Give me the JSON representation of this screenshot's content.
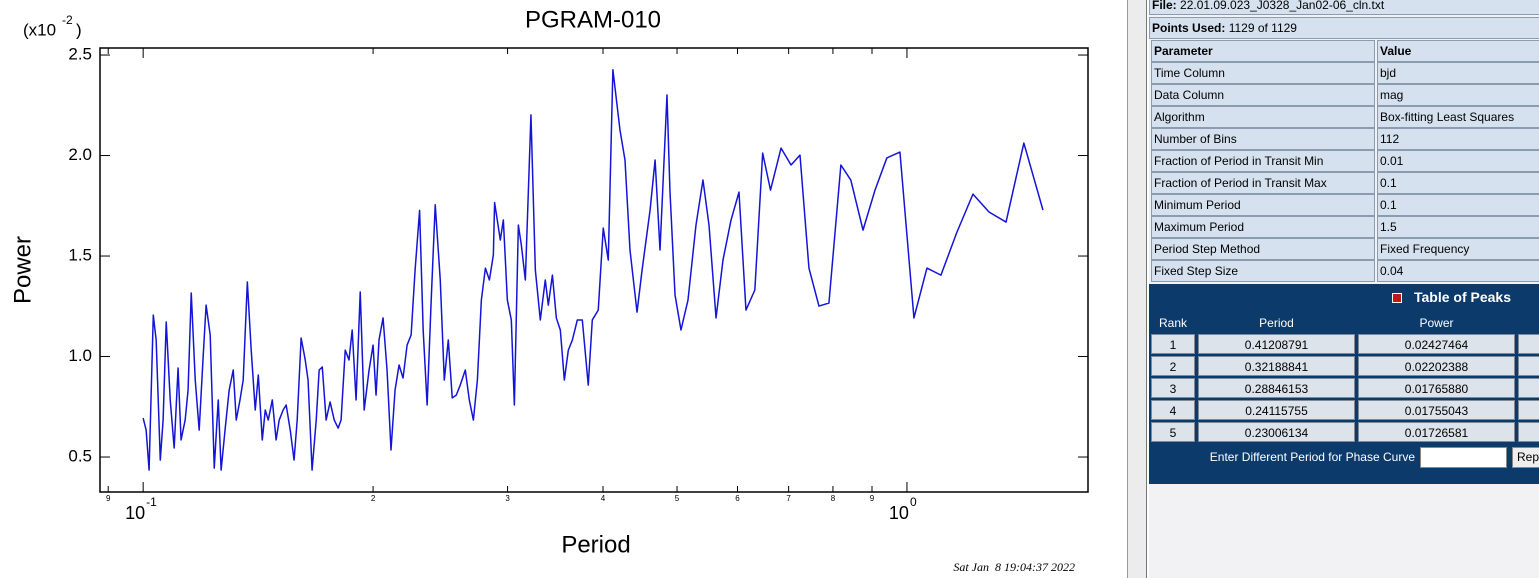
{
  "chart_data": {
    "type": "line",
    "title": "PGRAM-010",
    "x_label": "Period",
    "y_label": "Power",
    "y_scale": {
      "base": "(x10",
      "exponent": "-2",
      "close": ")"
    },
    "xscale": "log",
    "xlim": [
      0.0878,
      1.726
    ],
    "ylim": [
      0.326,
      2.535
    ],
    "xticks": [
      {
        "value": 0.09,
        "label": "9"
      },
      {
        "value": 0.1,
        "label": "10",
        "exponent": "-1"
      },
      {
        "value": 0.2,
        "label": "2"
      },
      {
        "value": 0.3,
        "label": "3"
      },
      {
        "value": 0.4,
        "label": "4"
      },
      {
        "value": 0.5,
        "label": "5"
      },
      {
        "value": 0.6,
        "label": "6"
      },
      {
        "value": 0.7,
        "label": "7"
      },
      {
        "value": 0.8,
        "label": "8"
      },
      {
        "value": 0.9,
        "label": "9"
      },
      {
        "value": 1,
        "label": "10",
        "exponent": "0"
      }
    ],
    "yticks": [
      0.5,
      {
        "value": 1,
        "label": "1.0"
      },
      1.5,
      {
        "value": 2,
        "label": "2.0"
      },
      2.5
    ],
    "x": [
      0.1,
      0.1009,
      0.1018,
      0.1031,
      0.104,
      0.1053,
      0.1062,
      0.1072,
      0.1085,
      0.1098,
      0.1111,
      0.1121,
      0.1135,
      0.1145,
      0.1156,
      0.117,
      0.1184,
      0.1198,
      0.1209,
      0.1224,
      0.1239,
      0.1254,
      0.1265,
      0.128,
      0.1296,
      0.1312,
      0.1324,
      0.1339,
      0.1352,
      0.1369,
      0.1385,
      0.1402,
      0.1415,
      0.1432,
      0.1445,
      0.1458,
      0.1476,
      0.1493,
      0.1507,
      0.1525,
      0.1539,
      0.1558,
      0.1576,
      0.1591,
      0.161,
      0.163,
      0.1644,
      0.1664,
      0.1685,
      0.17,
      0.1716,
      0.1736,
      0.1757,
      0.1779,
      0.18,
      0.1816,
      0.1839,
      0.186,
      0.1878,
      0.19,
      0.1924,
      0.1947,
      0.1976,
      0.2,
      0.2018,
      0.2036,
      0.2061,
      0.2086,
      0.2111,
      0.2137,
      0.2163,
      0.2189,
      0.2216,
      0.2243,
      0.227,
      0.2301,
      0.2326,
      0.2354,
      0.2383,
      0.2412,
      0.2449,
      0.2479,
      0.2509,
      0.2539,
      0.257,
      0.2601,
      0.2641,
      0.2673,
      0.2706,
      0.2739,
      0.2772,
      0.2806,
      0.284,
      0.2874,
      0.2885,
      0.2935,
      0.2962,
      0.2998,
      0.3034,
      0.3062,
      0.3099,
      0.3127,
      0.3165,
      0.3219,
      0.3262,
      0.3311,
      0.3361,
      0.3392,
      0.3434,
      0.3475,
      0.3517,
      0.356,
      0.3603,
      0.3647,
      0.3702,
      0.3758,
      0.3826,
      0.3873,
      0.3943,
      0.4003,
      0.4064,
      0.4121,
      0.421,
      0.4274,
      0.4339,
      0.4432,
      0.45,
      0.461,
      0.468,
      0.475,
      0.4851,
      0.4894,
      0.497,
      0.506,
      0.5168,
      0.5294,
      0.5407,
      0.5506,
      0.5624,
      0.5743,
      0.5884,
      0.6027,
      0.6155,
      0.6322,
      0.6473,
      0.6628,
      0.6842,
      0.7051,
      0.7244,
      0.7442,
      0.767,
      0.7904,
      0.8194,
      0.8443,
      0.8759,
      0.9082,
      0.9412,
      0.9791,
      1.0213,
      1.0621,
      1.1079,
      1.1627,
      1.2202,
      1.2806,
      1.3481,
      1.4225,
      1.5068
    ],
    "series": [
      {
        "color": "#1414d8",
        "values": [
          0.694,
          0.634,
          0.435,
          1.206,
          1.082,
          0.485,
          0.684,
          1.172,
          0.784,
          0.545,
          0.943,
          0.585,
          0.684,
          0.833,
          1.316,
          0.883,
          0.634,
          0.993,
          1.256,
          1.107,
          0.445,
          0.784,
          0.435,
          0.634,
          0.833,
          0.933,
          0.684,
          0.784,
          0.883,
          1.371,
          1.032,
          0.734,
          0.908,
          0.585,
          0.734,
          0.684,
          0.784,
          0.585,
          0.684,
          0.734,
          0.759,
          0.634,
          0.485,
          0.684,
          1.092,
          0.983,
          0.883,
          0.435,
          0.684,
          0.933,
          0.948,
          0.684,
          0.774,
          0.684,
          0.644,
          0.684,
          1.032,
          0.983,
          1.132,
          0.784,
          1.321,
          0.734,
          0.933,
          1.057,
          0.808,
          1.082,
          1.192,
          0.933,
          0.535,
          0.833,
          0.958,
          0.893,
          1.057,
          1.107,
          1.43,
          1.727,
          1.132,
          0.759,
          1.281,
          1.755,
          1.381,
          0.883,
          1.082,
          0.794,
          0.808,
          0.858,
          0.933,
          0.784,
          0.684,
          0.883,
          1.281,
          1.44,
          1.381,
          1.505,
          1.766,
          1.58,
          1.679,
          1.281,
          1.182,
          0.759,
          1.654,
          1.555,
          1.381,
          2.202,
          1.43,
          1.182,
          1.381,
          1.256,
          1.405,
          1.192,
          1.132,
          0.883,
          1.032,
          1.082,
          1.182,
          1.182,
          0.858,
          1.182,
          1.231,
          1.639,
          1.48,
          2.427,
          2.127,
          1.978,
          1.53,
          1.221,
          1.43,
          1.729,
          1.978,
          1.53,
          2.301,
          1.828,
          1.306,
          1.132,
          1.281,
          1.654,
          1.878,
          1.654,
          1.192,
          1.48,
          1.679,
          1.818,
          1.231,
          1.331,
          2.012,
          1.828,
          2.037,
          1.953,
          2.002,
          1.44,
          1.251,
          1.266,
          1.953,
          1.878,
          1.629,
          1.828,
          1.988,
          2.017,
          1.192,
          1.44,
          1.405,
          1.619,
          1.808,
          1.719,
          1.669,
          2.062,
          1.729
        ]
      }
    ],
    "timestamp": "Sat Jan  8 19:04:37 2022"
  },
  "panel": {
    "file": {
      "label": "File:",
      "value": "22.01.09.023_J0328_Jan02-06_cln.txt"
    },
    "points_used": {
      "label": "Points Used:",
      "value": "1129 of 1129"
    },
    "parameters": {
      "header": [
        "Parameter",
        "Value"
      ],
      "rows": [
        [
          "Time Column",
          "bjd"
        ],
        [
          "Data Column",
          "mag"
        ],
        [
          "Algorithm",
          "Box-fitting Least Squares"
        ],
        [
          "Number of Bins",
          "112"
        ],
        [
          "Fraction of Period in Transit Min",
          "0.01"
        ],
        [
          "Fraction of Period in Transit Max",
          "0.1"
        ],
        [
          "Minimum Period",
          "0.1"
        ],
        [
          "Maximum Period",
          "1.5"
        ],
        [
          "Period Step Method",
          "Fixed Frequency"
        ],
        [
          "Fixed Step Size",
          "0.04"
        ]
      ]
    },
    "peaks": {
      "title": "Table of Peaks",
      "header": [
        "Rank",
        "Period",
        "Power"
      ],
      "rows": [
        [
          "1",
          "0.41208791",
          "0.02427464"
        ],
        [
          "2",
          "0.32188841",
          "0.02202388"
        ],
        [
          "3",
          "0.28846153",
          "0.01765880"
        ],
        [
          "4",
          "0.24115755",
          "0.01755043"
        ],
        [
          "5",
          "0.23006134",
          "0.01726581"
        ]
      ]
    },
    "phase_prompt": "Enter Different Period for Phase Curve",
    "button": "Rep"
  }
}
